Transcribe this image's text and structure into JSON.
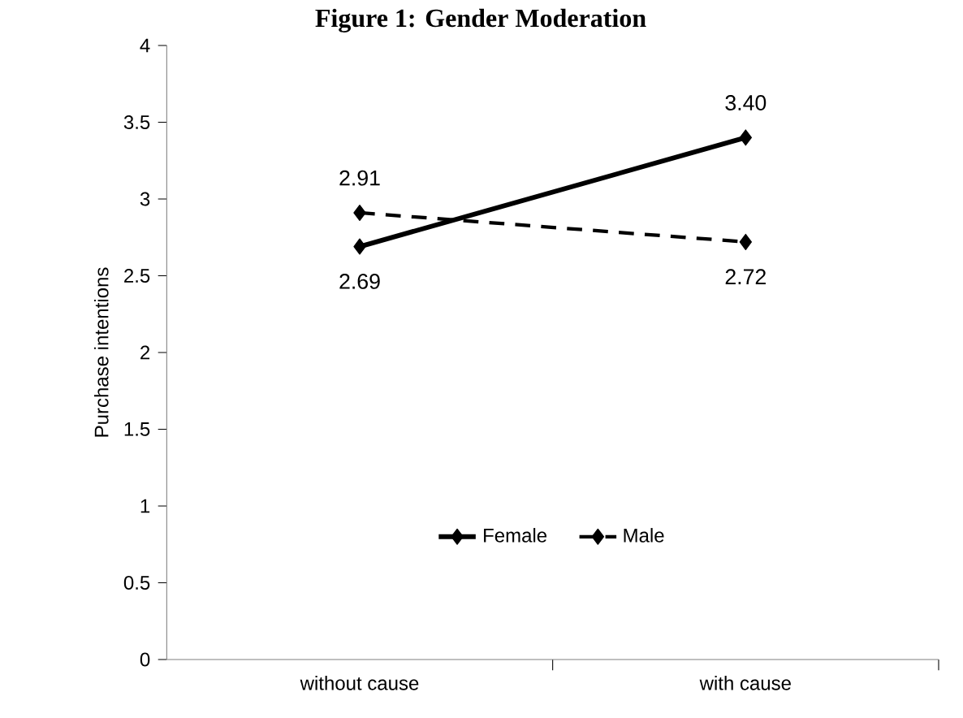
{
  "chart_data": {
    "type": "line",
    "title": "Figure 1: Gender Moderation",
    "ylabel": "Purchase intentions",
    "categories": [
      "without cause",
      "with cause"
    ],
    "series": [
      {
        "name": "Female",
        "color": "#000000",
        "values": [
          2.69,
          3.4
        ],
        "value_labels": [
          "2.69",
          "3.40"
        ],
        "line_style": "solid"
      },
      {
        "name": "Male",
        "color": "#000000",
        "values": [
          2.91,
          2.72
        ],
        "value_labels": [
          "2.91",
          "2.72"
        ],
        "line_style": "dashed"
      }
    ],
    "ylim": [
      0,
      4
    ],
    "yticks": [
      0,
      0.5,
      1,
      1.5,
      2,
      2.5,
      3,
      3.5,
      4
    ],
    "grid": false,
    "legend": "bottom",
    "marker": "diamond"
  }
}
